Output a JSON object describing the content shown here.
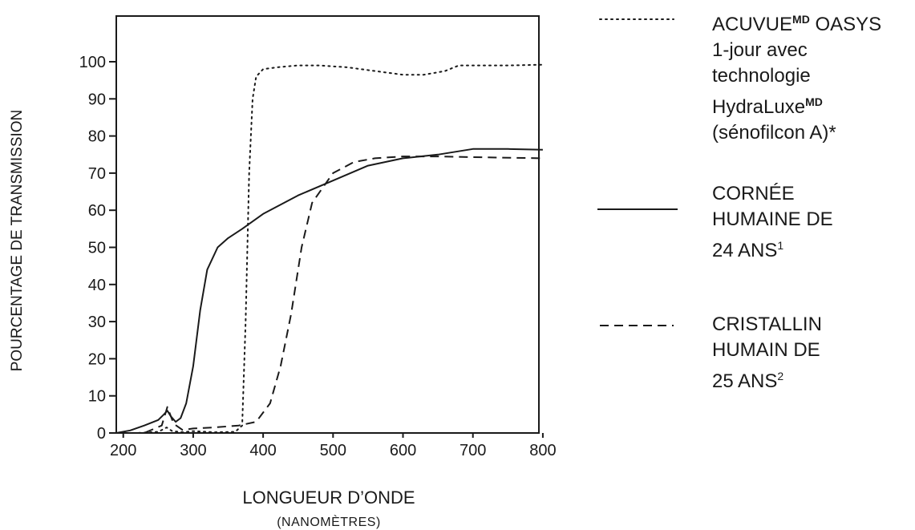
{
  "chart_data": {
    "type": "line",
    "ylabel": "POURCENTAGE DE TRANSMISSION",
    "xlabel": "LONGUEUR D’ONDE",
    "xunit": "(NANOMÈTRES)",
    "xlim": [
      190,
      800
    ],
    "ylim": [
      0,
      110
    ],
    "xticks": [
      200,
      300,
      400,
      500,
      600,
      700,
      800
    ],
    "yticks": [
      0,
      10,
      20,
      30,
      40,
      50,
      60,
      70,
      80,
      90,
      100
    ],
    "series": [
      {
        "name": "ACUVUE OASYS 1-jour avec technologie HydraLuxe (sénofilcon A)*",
        "style": "dotted",
        "x": [
          190,
          220,
          250,
          262,
          270,
          285,
          300,
          330,
          360,
          370,
          375,
          380,
          385,
          390,
          400,
          420,
          450,
          480,
          520,
          560,
          600,
          630,
          660,
          680,
          700,
          750,
          800
        ],
        "y": [
          0,
          0,
          0.3,
          1.5,
          0.5,
          0.2,
          0.5,
          0.2,
          0.3,
          2,
          30,
          70,
          90,
          96,
          98,
          98.5,
          99,
          99,
          98.5,
          97.5,
          96.5,
          96.5,
          97.5,
          99,
          99,
          99,
          99.2
        ]
      },
      {
        "name": "CORNÉE HUMAINE DE 24 ANS¹",
        "style": "solid",
        "x": [
          190,
          210,
          230,
          250,
          258,
          263,
          268,
          275,
          282,
          290,
          300,
          310,
          320,
          335,
          350,
          370,
          400,
          450,
          500,
          550,
          600,
          650,
          700,
          750,
          800
        ],
        "y": [
          0,
          0.7,
          2,
          3.5,
          5,
          6,
          4.5,
          3,
          4,
          8,
          18,
          33,
          44,
          50,
          52.5,
          55,
          59,
          64,
          68,
          72,
          74,
          75,
          76.5,
          76.5,
          76.3
        ]
      },
      {
        "name": "CRISTALLIN HUMAIN DE 25 ANS²",
        "style": "dashed",
        "x": [
          190,
          230,
          255,
          263,
          272,
          285,
          300,
          330,
          365,
          390,
          410,
          425,
          440,
          455,
          470,
          485,
          500,
          530,
          560,
          600,
          650,
          700,
          800
        ],
        "y": [
          0,
          0,
          2,
          7,
          2.5,
          0.8,
          1.2,
          1.5,
          2,
          3,
          8,
          18,
          32,
          50,
          62,
          66,
          70,
          73,
          74,
          74.5,
          74.5,
          74.3,
          74
        ]
      }
    ]
  },
  "legend": [
    {
      "style": "dotted",
      "lines": [
        {
          "main": "ACUVUE",
          "sup": "MD",
          "rest": " OASYS"
        },
        {
          "main": "1-jour avec"
        },
        {
          "main": "technologie"
        },
        {
          "main": "HydraLuxe",
          "sup": "MD"
        },
        {
          "main": "(sénofilcon A)*"
        }
      ]
    },
    {
      "style": "solid",
      "lines": [
        {
          "main": "CORNÉE"
        },
        {
          "main": "HUMAINE DE"
        },
        {
          "main": "24 ANS",
          "sup": "1"
        }
      ]
    },
    {
      "style": "dashed",
      "lines": [
        {
          "main": "CRISTALLIN"
        },
        {
          "main": "HUMAIN DE"
        },
        {
          "main": "25 ANS",
          "sup": "2"
        }
      ]
    }
  ]
}
